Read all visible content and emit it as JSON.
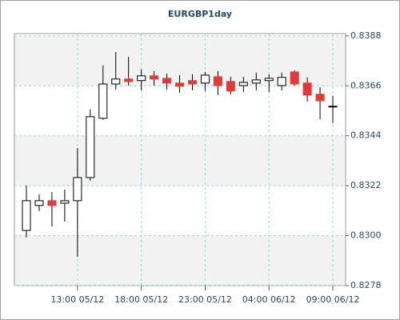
{
  "chart_data": {
    "type": "candlestick",
    "title": "EURGBP1day",
    "x": [
      9,
      10,
      11,
      12,
      13,
      14,
      15,
      16,
      17,
      18,
      19,
      20,
      21,
      22,
      23,
      24,
      25,
      26,
      27,
      28,
      29,
      30,
      31,
      32,
      33
    ],
    "open": [
      0.83023,
      0.83133,
      0.83154,
      0.83143,
      0.83154,
      0.83256,
      0.83517,
      0.83668,
      0.8369,
      0.83683,
      0.83704,
      0.83693,
      0.83672,
      0.83683,
      0.83672,
      0.837,
      0.83679,
      0.83661,
      0.83672,
      0.83683,
      0.83661,
      0.83721,
      0.83672,
      0.83623,
      0.8357
    ],
    "high": [
      0.83221,
      0.83182,
      0.83192,
      0.83203,
      0.83386,
      0.83556,
      0.8375,
      0.83809,
      0.83788,
      0.83732,
      0.83725,
      0.83714,
      0.83707,
      0.83711,
      0.83721,
      0.83725,
      0.837,
      0.837,
      0.83718,
      0.83711,
      0.83718,
      0.83728,
      0.83697,
      0.83654,
      0.83616
    ],
    "low": [
      0.82992,
      0.83108,
      0.83041,
      0.83062,
      0.82907,
      0.83242,
      0.8351,
      0.83644,
      0.83661,
      0.8364,
      0.83661,
      0.83644,
      0.8363,
      0.8364,
      0.83637,
      0.83619,
      0.83623,
      0.83633,
      0.8364,
      0.83633,
      0.8364,
      0.83661,
      0.83591,
      0.83513,
      0.83496
    ],
    "close": [
      0.83154,
      0.83154,
      0.83133,
      0.83154,
      0.83256,
      0.83524,
      0.83668,
      0.8369,
      0.83679,
      0.83704,
      0.8369,
      0.83672,
      0.83658,
      0.83668,
      0.83707,
      0.83661,
      0.83637,
      0.83675,
      0.83686,
      0.83693,
      0.83697,
      0.83668,
      0.83619,
      0.83594,
      0.8357
    ],
    "up_color": "#ffffff",
    "down_color": "#e53935",
    "edge_color": "#000000",
    "xlim": [
      8.06,
      34
    ],
    "xticks": [
      {
        "value": 13,
        "label": "13:00 05/12"
      },
      {
        "value": 18,
        "label": "18:00 05/12"
      },
      {
        "value": 23,
        "label": "23:00 05/12"
      },
      {
        "value": 28,
        "label": "04:00 06/12"
      },
      {
        "value": 33,
        "label": "09:00 06/12"
      }
    ],
    "ylim": [
      0.8278,
      0.8389
    ],
    "yticks": [
      0.8278,
      {
        "value": 0.83,
        "label": "0.8300"
      },
      0.8322,
      0.8344,
      0.8366,
      0.8388
    ],
    "grid": true
  }
}
